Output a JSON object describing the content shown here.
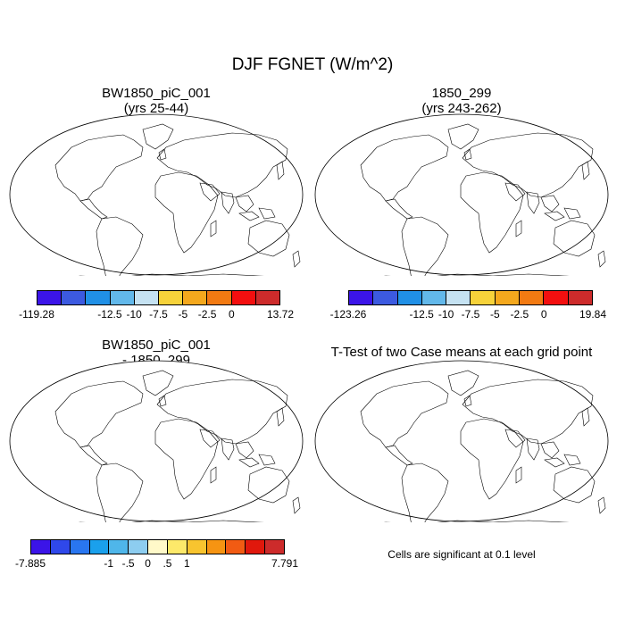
{
  "figure": {
    "title": "DJF FGNET (W/m^2)",
    "note": "Cells are significant at 0.1 level"
  },
  "panels": [
    {
      "id": "case1",
      "title_line1": "BW1850_piC_001",
      "title_line2": "(yrs 25-44)"
    },
    {
      "id": "case2",
      "title_line1": "1850_299",
      "title_line2": "(yrs 243-262)"
    },
    {
      "id": "diff",
      "title_line1": "BW1850_piC_001",
      "title_line2": "- 1850_299"
    },
    {
      "id": "ttest",
      "title_line1": "T-Test of two Case means at each grid point",
      "title_line2": ""
    }
  ],
  "colorbars": {
    "case1": {
      "colors": [
        "#3b14e8",
        "#3c5ae0",
        "#2090e6",
        "#62b8ea",
        "#c5e2f2",
        "#f6d23a",
        "#f4a81d",
        "#f27a12",
        "#f30f0f",
        "#cd2b2b"
      ],
      "labels": [
        "-119.28",
        "-12.5",
        "-10",
        "-7.5",
        "-5",
        "-2.5",
        "0",
        "13.72"
      ],
      "label_boundaries": [
        0,
        3,
        4,
        5,
        6,
        7,
        8,
        10
      ]
    },
    "case2": {
      "colors": [
        "#3b14e8",
        "#3c5ae0",
        "#2090e6",
        "#62b8ea",
        "#c5e2f2",
        "#f6d23a",
        "#f4a81d",
        "#f27a12",
        "#f30f0f",
        "#cd2b2b"
      ],
      "labels": [
        "-123.26",
        "-12.5",
        "-10",
        "-7.5",
        "-5",
        "-2.5",
        "0",
        "19.84"
      ],
      "label_boundaries": [
        0,
        3,
        4,
        5,
        6,
        7,
        8,
        10
      ]
    },
    "diff": {
      "colors": [
        "#3b14e8",
        "#2f48ea",
        "#2976f0",
        "#1aa0ec",
        "#4fb6ea",
        "#8dcdf0",
        "#fff9c9",
        "#fde96a",
        "#f8c42f",
        "#f69412",
        "#f15b13",
        "#e0180c",
        "#cd2b2b"
      ],
      "labels": [
        "-7.885",
        "-1",
        "-.5",
        "0",
        ".5",
        "1",
        "7.791"
      ],
      "label_boundaries": [
        0,
        4,
        5,
        6,
        7,
        8,
        13
      ]
    }
  },
  "map_colors": {
    "land_case": [
      "#3b14e8",
      "#3c5ae0",
      "#2090e6",
      "#62b8ea",
      "#c5e2f2",
      "#f6d23a",
      "#f4a81d",
      "#f27a12",
      "#f30f0f",
      "#cd2b2b"
    ],
    "land_diff": [
      "#2f48ea",
      "#62b8ea",
      "#8dcdf0",
      "#fff9c9",
      "#fde96a",
      "#f8c42f",
      "#f15b13"
    ],
    "significant": "#e0180c",
    "ocean": "#ffffff",
    "coast": "#000000"
  }
}
